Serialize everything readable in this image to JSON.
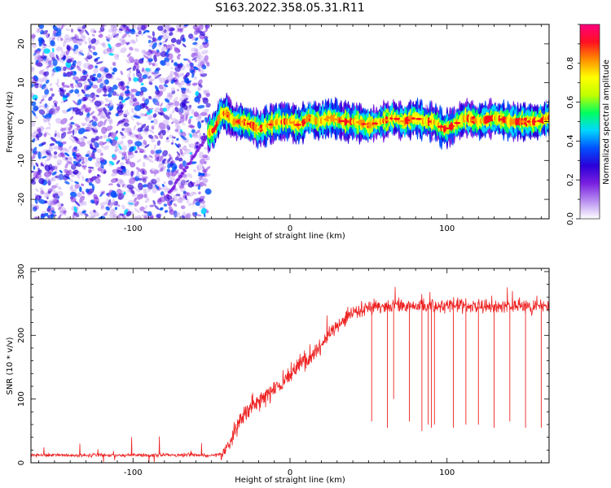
{
  "title": "S163.2022.358.05.31.R11",
  "chart_data": [
    {
      "type": "heatmap",
      "xlabel": "Height of straight line (km)",
      "ylabel": "Frequency (Hz)",
      "xlim": [
        -165,
        165
      ],
      "ylim": [
        -25,
        25
      ],
      "x_ticks": [
        -100,
        0,
        100
      ],
      "y_ticks": [
        -20,
        -10,
        0,
        10,
        20
      ],
      "noise_region_x": [
        -165,
        -52
      ],
      "ridge": {
        "x": [
          -52,
          -48,
          -44,
          -40,
          -36,
          -30,
          -24,
          -20,
          -14,
          -8,
          0,
          6,
          12,
          18,
          26,
          34,
          42,
          50,
          58,
          66,
          72,
          80,
          86,
          92,
          98,
          104,
          112,
          120,
          130,
          140,
          150,
          158,
          165
        ],
        "y": [
          -3,
          -2,
          2,
          2,
          0,
          0,
          -1,
          -2,
          -1,
          0,
          0,
          -1,
          1,
          0,
          1,
          0,
          0,
          -1,
          0,
          1,
          0,
          1,
          0,
          0,
          -2,
          -1,
          1,
          0,
          1,
          0,
          0,
          0,
          1
        ]
      },
      "colorbar": {
        "label": "Normalized spectral amplitude",
        "ticks": [
          0.0,
          0.2,
          0.4,
          0.6,
          0.8
        ],
        "range": [
          0,
          1
        ],
        "colors": [
          "#ffffff",
          "#b88ff0",
          "#7a20e0",
          "#2a00d8",
          "#0050ff",
          "#00d8ff",
          "#00ff60",
          "#c0ff00",
          "#ffff00",
          "#ff9000",
          "#ff1020",
          "#ff0080"
        ]
      },
      "grid": false
    },
    {
      "type": "line",
      "xlabel": "Height of straight line (km)",
      "ylabel": "SNR (10 * v/v)",
      "xlim": [
        -165,
        165
      ],
      "ylim": [
        0,
        305
      ],
      "x_ticks": [
        -100,
        0,
        100
      ],
      "y_ticks": [
        0,
        100,
        200,
        300
      ],
      "series": [
        {
          "color": "#ee2222",
          "profile": {
            "x": [
              -165,
              -44,
              -40,
              -30,
              -20,
              -10,
              0,
              10,
              20,
              30,
              40,
              50,
              60,
              70,
              80,
              100,
              120,
              140,
              165
            ],
            "y": [
              12,
              12,
              25,
              75,
              95,
              115,
              135,
              160,
              185,
              215,
              235,
              243,
              246,
              248,
              246,
              247,
              246,
              246,
              248
            ]
          },
          "dips_x": [
            52,
            62,
            66,
            76,
            84,
            88,
            90,
            92,
            104,
            112,
            120,
            130,
            140,
            150,
            160
          ],
          "dips_y": [
            65,
            55,
            100,
            65,
            50,
            60,
            55,
            60,
            55,
            60,
            60,
            55,
            65,
            55,
            55
          ]
        }
      ],
      "grid": false
    }
  ]
}
